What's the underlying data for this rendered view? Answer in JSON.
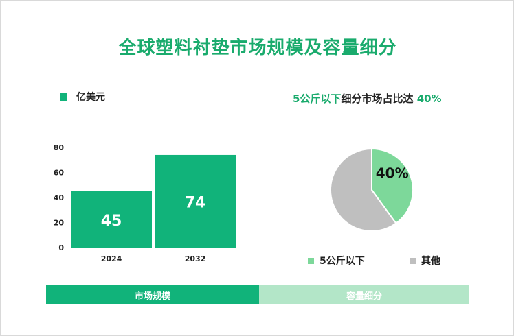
{
  "title": "全球塑料衬垫市场规模及容量细分",
  "bar_legend_label": "亿美元",
  "pie_headline": {
    "highlight": "5公斤以下",
    "middle": "细分市场占比达",
    "value": "40%"
  },
  "pie_legend": [
    {
      "label": "5公斤以下",
      "color": "#7dd89a"
    },
    {
      "label": "其他",
      "color": "#bfbfbf"
    }
  ],
  "tabs": {
    "left": "市场规模",
    "right": "容量细分"
  },
  "colors": {
    "accent": "#1aab6d",
    "bar": "#11b37a",
    "pie_main": "#7dd89a",
    "pie_other": "#bfbfbf"
  },
  "chart_data": [
    {
      "type": "bar",
      "categories": [
        "2024",
        "2032"
      ],
      "values": [
        45,
        74
      ],
      "ylim": [
        0,
        80
      ],
      "yticks": [
        0,
        20,
        40,
        60,
        80
      ],
      "legend": "亿美元",
      "grid": false
    },
    {
      "type": "pie",
      "labels": [
        "5公斤以下",
        "其他"
      ],
      "values": [
        40,
        60
      ],
      "data_labels": [
        "40%",
        ""
      ]
    }
  ]
}
